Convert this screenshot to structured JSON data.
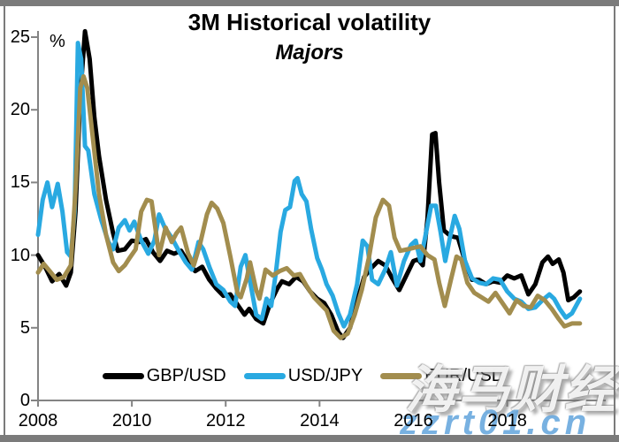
{
  "title": "3M Historical volatility",
  "subtitle": "Majors",
  "y_axis_unit_label": "%",
  "frame_color": "#7b7b7b",
  "axis_color": "#848484",
  "legend": [
    {
      "label": "GBP/USD",
      "color": "#000000"
    },
    {
      "label": "USD/JPY",
      "color": "#29a9e1"
    },
    {
      "label": "EUR/USD",
      "color": "#a28d4e"
    }
  ],
  "watermark": {
    "cn_text": "海马财经",
    "site_text": "zzrt01.cn",
    "site_color": "#60a3dc"
  },
  "chart_data": {
    "type": "line",
    "title": "3M Historical volatility",
    "subtitle": "Majors",
    "ylabel": "%",
    "xlabel": "",
    "ylim": [
      0,
      25
    ],
    "xlim": [
      2008,
      2020.1
    ],
    "y_ticks": [
      0,
      5,
      10,
      15,
      20,
      25
    ],
    "x_ticks": [
      2008,
      2010,
      2012,
      2014,
      2016,
      2018
    ],
    "grid": false,
    "legend_position": "bottom",
    "series": [
      {
        "name": "GBP/USD",
        "color": "#000000",
        "points": [
          [
            2008.0,
            10.0
          ],
          [
            2008.15,
            9.2
          ],
          [
            2008.3,
            8.2
          ],
          [
            2008.45,
            8.7
          ],
          [
            2008.6,
            7.9
          ],
          [
            2008.7,
            8.8
          ],
          [
            2008.8,
            13.0
          ],
          [
            2008.9,
            21.0
          ],
          [
            2009.0,
            25.4
          ],
          [
            2009.1,
            23.5
          ],
          [
            2009.2,
            19.5
          ],
          [
            2009.3,
            16.8
          ],
          [
            2009.45,
            13.8
          ],
          [
            2009.6,
            11.5
          ],
          [
            2009.7,
            10.3
          ],
          [
            2009.85,
            10.4
          ],
          [
            2010.0,
            11.0
          ],
          [
            2010.15,
            10.9
          ],
          [
            2010.3,
            11.1
          ],
          [
            2010.45,
            10.2
          ],
          [
            2010.6,
            9.6
          ],
          [
            2010.75,
            10.3
          ],
          [
            2010.9,
            10.1
          ],
          [
            2011.05,
            10.3
          ],
          [
            2011.2,
            9.5
          ],
          [
            2011.35,
            8.9
          ],
          [
            2011.5,
            9.2
          ],
          [
            2011.65,
            8.3
          ],
          [
            2011.8,
            7.7
          ],
          [
            2011.95,
            7.2
          ],
          [
            2012.1,
            7.3
          ],
          [
            2012.25,
            6.6
          ],
          [
            2012.4,
            5.9
          ],
          [
            2012.5,
            6.3
          ],
          [
            2012.65,
            5.6
          ],
          [
            2012.8,
            5.3
          ],
          [
            2012.95,
            6.7
          ],
          [
            2013.1,
            7.7
          ],
          [
            2013.2,
            8.2
          ],
          [
            2013.35,
            8.0
          ],
          [
            2013.5,
            8.5
          ],
          [
            2013.65,
            8.2
          ],
          [
            2013.8,
            7.5
          ],
          [
            2013.95,
            7.0
          ],
          [
            2014.1,
            6.7
          ],
          [
            2014.25,
            5.9
          ],
          [
            2014.4,
            4.7
          ],
          [
            2014.5,
            4.3
          ],
          [
            2014.65,
            5.0
          ],
          [
            2014.8,
            6.8
          ],
          [
            2014.95,
            8.5
          ],
          [
            2015.1,
            9.1
          ],
          [
            2015.25,
            9.6
          ],
          [
            2015.4,
            9.3
          ],
          [
            2015.55,
            8.4
          ],
          [
            2015.7,
            7.6
          ],
          [
            2015.85,
            8.6
          ],
          [
            2016.0,
            9.6
          ],
          [
            2016.1,
            9.7
          ],
          [
            2016.2,
            9.3
          ],
          [
            2016.3,
            12.5
          ],
          [
            2016.4,
            18.3
          ],
          [
            2016.47,
            18.4
          ],
          [
            2016.55,
            15.0
          ],
          [
            2016.65,
            11.7
          ],
          [
            2016.8,
            11.3
          ],
          [
            2016.95,
            11.2
          ],
          [
            2017.1,
            9.6
          ],
          [
            2017.25,
            8.3
          ],
          [
            2017.4,
            8.3
          ],
          [
            2017.55,
            8.0
          ],
          [
            2017.7,
            8.2
          ],
          [
            2017.85,
            8.1
          ],
          [
            2018.0,
            8.6
          ],
          [
            2018.15,
            8.4
          ],
          [
            2018.3,
            8.6
          ],
          [
            2018.45,
            7.3
          ],
          [
            2018.6,
            8.0
          ],
          [
            2018.75,
            9.5
          ],
          [
            2018.87,
            9.9
          ],
          [
            2018.97,
            9.4
          ],
          [
            2019.1,
            9.7
          ],
          [
            2019.2,
            8.8
          ],
          [
            2019.3,
            6.9
          ],
          [
            2019.42,
            7.1
          ],
          [
            2019.55,
            7.5
          ]
        ]
      },
      {
        "name": "USD/JPY",
        "color": "#29a9e1",
        "points": [
          [
            2008.0,
            11.4
          ],
          [
            2008.1,
            13.8
          ],
          [
            2008.2,
            15.0
          ],
          [
            2008.3,
            13.3
          ],
          [
            2008.42,
            14.9
          ],
          [
            2008.52,
            13.0
          ],
          [
            2008.62,
            10.2
          ],
          [
            2008.7,
            9.9
          ],
          [
            2008.78,
            13.0
          ],
          [
            2008.85,
            24.6
          ],
          [
            2008.92,
            23.5
          ],
          [
            2009.0,
            17.5
          ],
          [
            2009.07,
            17.2
          ],
          [
            2009.2,
            14.2
          ],
          [
            2009.35,
            12.4
          ],
          [
            2009.5,
            10.9
          ],
          [
            2009.6,
            10.4
          ],
          [
            2009.72,
            11.9
          ],
          [
            2009.85,
            12.4
          ],
          [
            2009.95,
            11.7
          ],
          [
            2010.05,
            12.3
          ],
          [
            2010.2,
            11.0
          ],
          [
            2010.35,
            10.1
          ],
          [
            2010.48,
            11.0
          ],
          [
            2010.58,
            12.8
          ],
          [
            2010.7,
            11.9
          ],
          [
            2010.85,
            11.2
          ],
          [
            2011.0,
            10.3
          ],
          [
            2011.15,
            9.5
          ],
          [
            2011.28,
            9.0
          ],
          [
            2011.42,
            10.9
          ],
          [
            2011.52,
            10.4
          ],
          [
            2011.65,
            9.2
          ],
          [
            2011.8,
            8.0
          ],
          [
            2011.95,
            7.6
          ],
          [
            2012.1,
            6.8
          ],
          [
            2012.2,
            6.5
          ],
          [
            2012.32,
            9.2
          ],
          [
            2012.42,
            10.0
          ],
          [
            2012.52,
            8.2
          ],
          [
            2012.65,
            5.9
          ],
          [
            2012.77,
            5.6
          ],
          [
            2012.87,
            7.0
          ],
          [
            2012.97,
            6.5
          ],
          [
            2013.07,
            8.8
          ],
          [
            2013.17,
            11.6
          ],
          [
            2013.27,
            13.1
          ],
          [
            2013.37,
            13.3
          ],
          [
            2013.47,
            15.1
          ],
          [
            2013.53,
            15.3
          ],
          [
            2013.62,
            14.2
          ],
          [
            2013.72,
            13.7
          ],
          [
            2013.82,
            11.8
          ],
          [
            2013.95,
            9.8
          ],
          [
            2014.05,
            9.0
          ],
          [
            2014.15,
            8.0
          ],
          [
            2014.28,
            7.2
          ],
          [
            2014.4,
            6.0
          ],
          [
            2014.52,
            5.1
          ],
          [
            2014.65,
            5.9
          ],
          [
            2014.8,
            8.0
          ],
          [
            2014.92,
            11.0
          ],
          [
            2015.02,
            10.6
          ],
          [
            2015.12,
            8.3
          ],
          [
            2015.25,
            8.0
          ],
          [
            2015.4,
            9.0
          ],
          [
            2015.52,
            10.2
          ],
          [
            2015.65,
            7.9
          ],
          [
            2015.8,
            9.6
          ],
          [
            2015.95,
            10.7
          ],
          [
            2016.05,
            11.0
          ],
          [
            2016.15,
            9.6
          ],
          [
            2016.25,
            11.2
          ],
          [
            2016.38,
            13.4
          ],
          [
            2016.48,
            13.4
          ],
          [
            2016.58,
            11.6
          ],
          [
            2016.68,
            9.6
          ],
          [
            2016.78,
            11.2
          ],
          [
            2016.88,
            12.7
          ],
          [
            2016.98,
            11.8
          ],
          [
            2017.1,
            9.6
          ],
          [
            2017.25,
            8.4
          ],
          [
            2017.4,
            8.1
          ],
          [
            2017.55,
            8.0
          ],
          [
            2017.7,
            8.4
          ],
          [
            2017.85,
            8.3
          ],
          [
            2018.0,
            7.5
          ],
          [
            2018.15,
            7.0
          ],
          [
            2018.3,
            6.8
          ],
          [
            2018.45,
            6.3
          ],
          [
            2018.6,
            6.4
          ],
          [
            2018.75,
            6.9
          ],
          [
            2018.9,
            7.3
          ],
          [
            2019.0,
            7.0
          ],
          [
            2019.12,
            6.3
          ],
          [
            2019.25,
            5.7
          ],
          [
            2019.38,
            6.0
          ],
          [
            2019.55,
            7.0
          ]
        ]
      },
      {
        "name": "EUR/USD",
        "color": "#a28d4e",
        "points": [
          [
            2008.0,
            8.8
          ],
          [
            2008.12,
            9.4
          ],
          [
            2008.25,
            8.9
          ],
          [
            2008.4,
            8.3
          ],
          [
            2008.55,
            8.5
          ],
          [
            2008.7,
            9.3
          ],
          [
            2008.8,
            14.5
          ],
          [
            2008.9,
            21.5
          ],
          [
            2008.97,
            22.3
          ],
          [
            2009.05,
            21.5
          ],
          [
            2009.17,
            18.0
          ],
          [
            2009.3,
            14.2
          ],
          [
            2009.45,
            11.4
          ],
          [
            2009.6,
            9.5
          ],
          [
            2009.72,
            8.9
          ],
          [
            2009.85,
            9.3
          ],
          [
            2009.95,
            9.8
          ],
          [
            2010.08,
            10.4
          ],
          [
            2010.2,
            13.0
          ],
          [
            2010.32,
            13.8
          ],
          [
            2010.42,
            13.7
          ],
          [
            2010.5,
            11.9
          ],
          [
            2010.58,
            10.0
          ],
          [
            2010.72,
            11.9
          ],
          [
            2010.85,
            10.9
          ],
          [
            2010.95,
            11.5
          ],
          [
            2011.05,
            11.9
          ],
          [
            2011.2,
            10.1
          ],
          [
            2011.32,
            9.3
          ],
          [
            2011.45,
            10.7
          ],
          [
            2011.6,
            12.8
          ],
          [
            2011.7,
            13.6
          ],
          [
            2011.82,
            13.2
          ],
          [
            2011.95,
            12.2
          ],
          [
            2012.1,
            9.9
          ],
          [
            2012.25,
            7.4
          ],
          [
            2012.32,
            7.1
          ],
          [
            2012.45,
            8.4
          ],
          [
            2012.52,
            9.5
          ],
          [
            2012.65,
            7.6
          ],
          [
            2012.72,
            7.0
          ],
          [
            2012.85,
            9.0
          ],
          [
            2013.0,
            8.6
          ],
          [
            2013.15,
            8.9
          ],
          [
            2013.3,
            9.1
          ],
          [
            2013.45,
            8.6
          ],
          [
            2013.58,
            8.7
          ],
          [
            2013.72,
            7.9
          ],
          [
            2013.88,
            7.1
          ],
          [
            2014.0,
            6.7
          ],
          [
            2014.15,
            6.2
          ],
          [
            2014.3,
            4.8
          ],
          [
            2014.45,
            4.3
          ],
          [
            2014.6,
            4.6
          ],
          [
            2014.75,
            5.9
          ],
          [
            2014.9,
            7.6
          ],
          [
            2015.05,
            9.8
          ],
          [
            2015.2,
            12.6
          ],
          [
            2015.35,
            13.8
          ],
          [
            2015.48,
            13.4
          ],
          [
            2015.6,
            11.2
          ],
          [
            2015.72,
            10.3
          ],
          [
            2015.88,
            10.4
          ],
          [
            2016.0,
            10.5
          ],
          [
            2016.15,
            10.6
          ],
          [
            2016.3,
            10.0
          ],
          [
            2016.45,
            9.7
          ],
          [
            2016.55,
            8.1
          ],
          [
            2016.67,
            6.5
          ],
          [
            2016.8,
            8.3
          ],
          [
            2016.92,
            9.9
          ],
          [
            2017.02,
            9.7
          ],
          [
            2017.15,
            8.1
          ],
          [
            2017.3,
            7.4
          ],
          [
            2017.45,
            7.1
          ],
          [
            2017.6,
            6.8
          ],
          [
            2017.75,
            7.4
          ],
          [
            2017.9,
            6.7
          ],
          [
            2018.05,
            6.0
          ],
          [
            2018.2,
            6.9
          ],
          [
            2018.35,
            6.5
          ],
          [
            2018.5,
            6.4
          ],
          [
            2018.65,
            7.2
          ],
          [
            2018.8,
            6.9
          ],
          [
            2018.95,
            6.3
          ],
          [
            2019.1,
            5.6
          ],
          [
            2019.22,
            5.1
          ],
          [
            2019.38,
            5.3
          ],
          [
            2019.55,
            5.3
          ]
        ]
      }
    ]
  }
}
